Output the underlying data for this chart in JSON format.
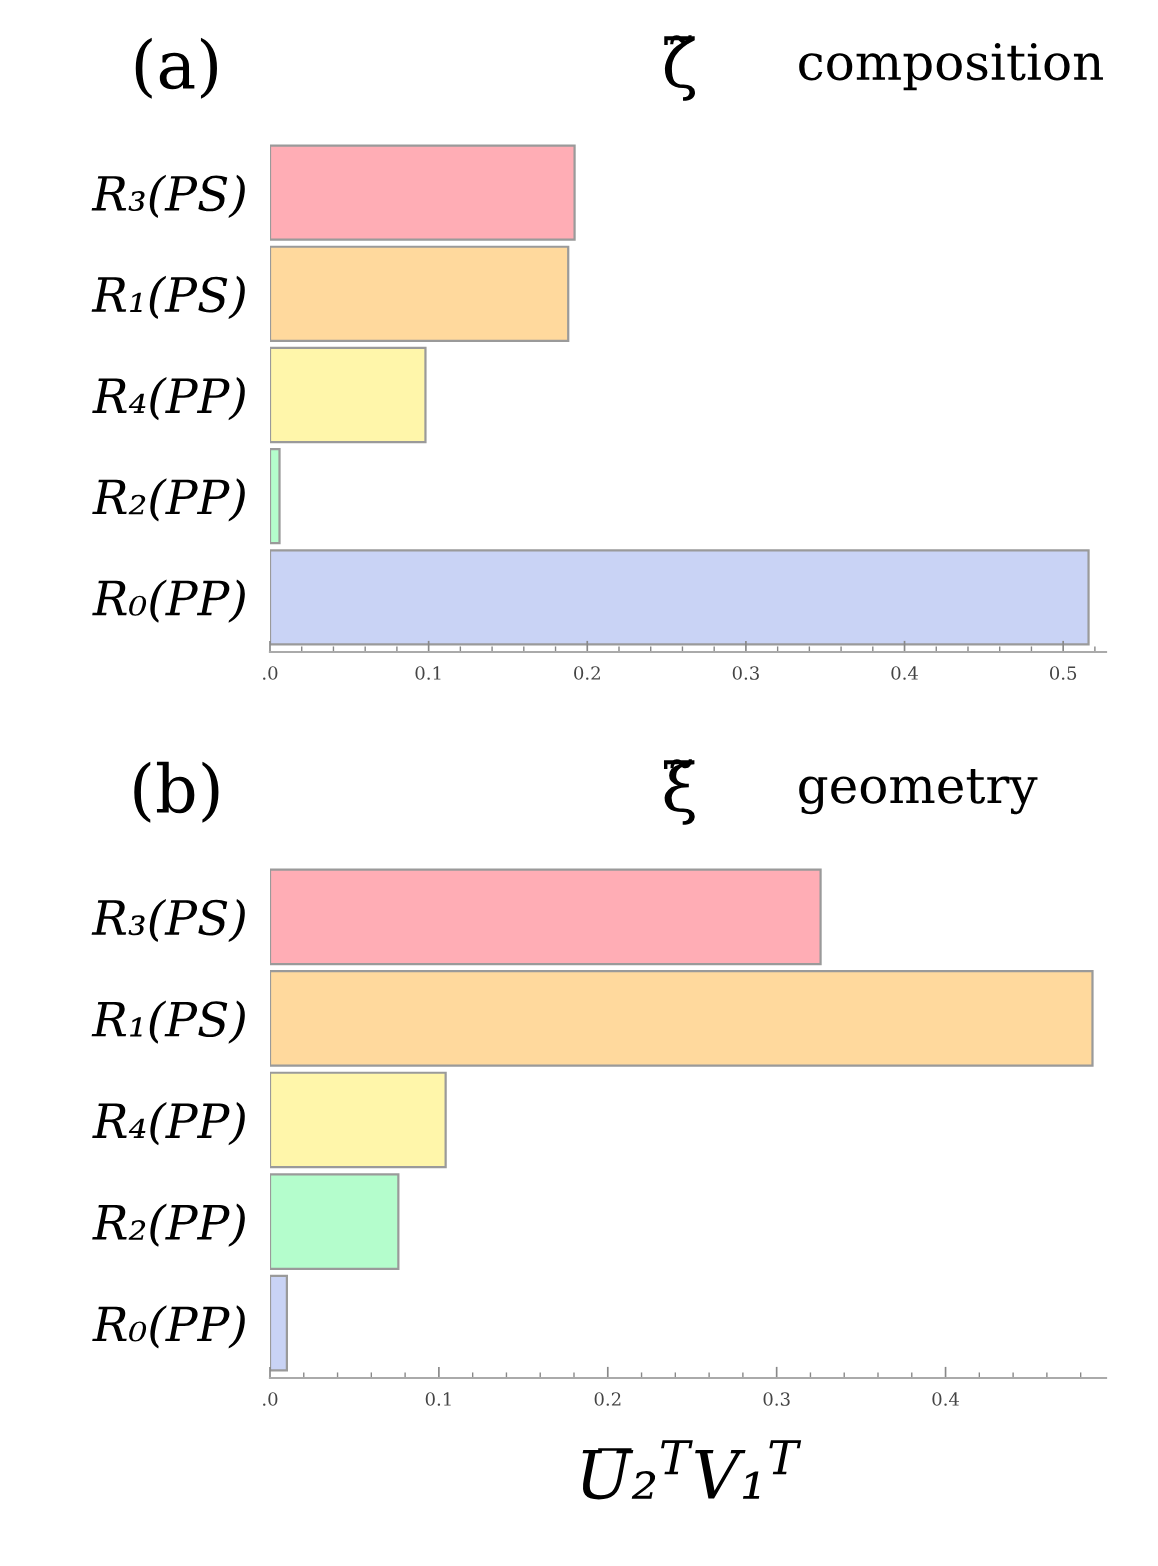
{
  "chart_data": [
    {
      "type": "bar",
      "orientation": "horizontal",
      "title": "(a)",
      "annotations": [
        "ζ̃",
        "composition"
      ],
      "categories": [
        "R₃(PS)",
        "R₁(PS)",
        "R₄(PP)",
        "R₂(PP)",
        "R₀(PP)"
      ],
      "values": [
        0.192,
        0.188,
        0.098,
        0.006,
        0.516
      ],
      "colors": [
        "#ffadb5",
        "#ffd99d",
        "#fff6aa",
        "#b4fdcc",
        "#c9d3f5"
      ],
      "xlim": [
        0,
        0.527
      ],
      "xticks": [
        {
          "value": 0,
          "label": ".0"
        },
        0.1,
        0.2,
        0.3,
        0.4,
        0.5
      ]
    },
    {
      "type": "bar",
      "orientation": "horizontal",
      "title": "(b)",
      "annotations": [
        "ξ̃",
        "geometry"
      ],
      "categories": [
        "R₃(PS)",
        "R₁(PS)",
        "R₄(PP)",
        "R₂(PP)",
        "R₀(PP)"
      ],
      "values": [
        0.326,
        0.487,
        0.104,
        0.076,
        0.01
      ],
      "colors": [
        "#ffadb5",
        "#ffd99d",
        "#fff6aa",
        "#b4fdcc",
        "#c9d3f5"
      ],
      "xlim": [
        0,
        0.495
      ],
      "xticks": [
        {
          "value": 0,
          "label": ".0"
        },
        0.1,
        0.2,
        0.3,
        0.4
      ],
      "xlabel": "U̅₂$^{T}$V₁$^{T}$"
    }
  ]
}
